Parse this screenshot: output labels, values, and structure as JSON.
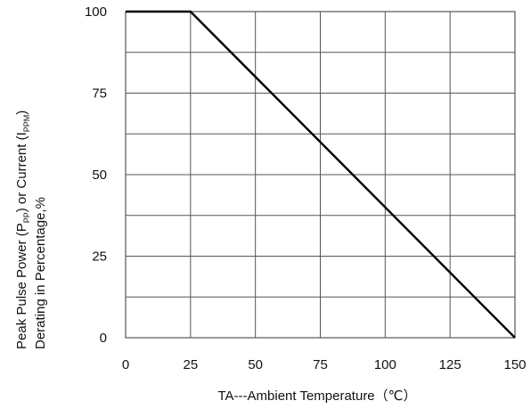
{
  "chart_data": {
    "type": "line",
    "xlabel": "TA---Ambient Temperature（℃）",
    "ylabel": {
      "line1": {
        "a": "Peak Pulse Power (P",
        "a_sub": "PP",
        "b": ") or Current (I",
        "b_sub": "PPM",
        "c": ")"
      },
      "line2": "Derating in Percentage,%"
    },
    "xlim": [
      0,
      150
    ],
    "ylim": [
      0,
      100
    ],
    "x_ticks": [
      0,
      25,
      50,
      75,
      100,
      125,
      150
    ],
    "y_ticks": [
      0,
      25,
      50,
      75,
      100
    ],
    "x_tick_labels": [
      "0",
      "25",
      "50",
      "75",
      "100",
      "125",
      "150"
    ],
    "y_tick_labels": [
      "0",
      "25",
      "50",
      "75",
      "100"
    ],
    "x_grid_lines": [
      0,
      25,
      50,
      75,
      100,
      125,
      150
    ],
    "y_grid_lines": [
      0,
      12.5,
      25,
      37.5,
      50,
      62.5,
      75,
      87.5,
      100
    ],
    "grid": true,
    "series": [
      {
        "x": [
          0,
          25,
          150
        ],
        "y": [
          100,
          100,
          0
        ]
      }
    ],
    "colors": {
      "line": "#000000",
      "grid": "#555555",
      "frame": "#555555"
    }
  }
}
